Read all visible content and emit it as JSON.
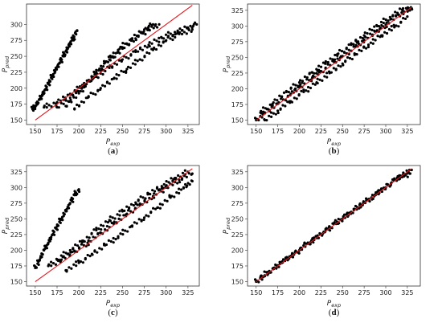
{
  "chart_data": [
    {
      "type": "scatter",
      "caption": {
        "open": "(",
        "letter": "a",
        "close": ")"
      },
      "xlabel": {
        "base": "P",
        "sub": "exp"
      },
      "ylabel": {
        "base": "P",
        "sub": "pred"
      },
      "xticks": [
        "150",
        "175",
        "200",
        "225",
        "250",
        "275",
        "300",
        "325"
      ],
      "yticks": [
        "150",
        "175",
        "200",
        "225",
        "250",
        "275",
        "300"
      ],
      "xlim": [
        140,
        338
      ],
      "ylim": [
        143,
        332
      ],
      "reference_line": {
        "from": [
          150,
          150
        ],
        "to": [
          330,
          330
        ],
        "color": "#e0151b"
      },
      "marker_color": "#000000",
      "series": [
        {
          "points": [
            [
              147,
              167
            ],
            [
              150,
              172
            ],
            [
              155,
              182
            ],
            [
              158,
              190
            ],
            [
              162,
              198
            ],
            [
              166,
              210
            ],
            [
              170,
              220
            ],
            [
              174,
              230
            ],
            [
              178,
              240
            ],
            [
              182,
              250
            ],
            [
              186,
              260
            ],
            [
              190,
              270
            ],
            [
              194,
              280
            ],
            [
              198,
              290
            ]
          ]
        },
        {
          "points": [
            [
              160,
              170
            ],
            [
              175,
              178
            ],
            [
              190,
              190
            ],
            [
              205,
              205
            ],
            [
              220,
              218
            ],
            [
              235,
              232
            ],
            [
              250,
              245
            ],
            [
              265,
              257
            ],
            [
              280,
              268
            ],
            [
              295,
              279
            ],
            [
              310,
              288
            ],
            [
              325,
              295
            ],
            [
              335,
              300
            ]
          ]
        },
        {
          "points": [
            [
              175,
              170
            ],
            [
              190,
              185
            ],
            [
              205,
              205
            ],
            [
              220,
              225
            ],
            [
              235,
              245
            ],
            [
              250,
              262
            ],
            [
              265,
              278
            ],
            [
              280,
              292
            ],
            [
              292,
              300
            ]
          ]
        },
        {
          "points": [
            [
              185,
              172
            ],
            [
              200,
              192
            ],
            [
              215,
              215
            ],
            [
              230,
              240
            ],
            [
              245,
              260
            ],
            [
              260,
              277
            ],
            [
              275,
              292
            ],
            [
              285,
              300
            ]
          ]
        },
        {
          "points": [
            [
              195,
              168
            ],
            [
              210,
              185
            ],
            [
              225,
              200
            ],
            [
              240,
              215
            ],
            [
              255,
              230
            ],
            [
              270,
              245
            ],
            [
              285,
              260
            ],
            [
              300,
              275
            ],
            [
              315,
              285
            ],
            [
              330,
              292
            ]
          ]
        }
      ]
    },
    {
      "type": "scatter",
      "caption": {
        "open": "(",
        "letter": "b",
        "close": ")"
      },
      "xlabel": {
        "base": "P",
        "sub": "exp"
      },
      "ylabel": {
        "base": "P",
        "sub": "pred"
      },
      "xticks": [
        "150",
        "175",
        "200",
        "225",
        "250",
        "275",
        "300",
        "325"
      ],
      "yticks": [
        "150",
        "175",
        "200",
        "225",
        "250",
        "275",
        "300",
        "325"
      ],
      "xlim": [
        140,
        340
      ],
      "ylim": [
        143,
        335
      ],
      "reference_line": {
        "from": [
          150,
          150
        ],
        "to": [
          330,
          330
        ],
        "color": "#e0151b"
      },
      "marker_color": "#000000",
      "series": [
        {
          "points": [
            [
              150,
              150
            ],
            [
              160,
              162
            ],
            [
              175,
              176
            ],
            [
              190,
              192
            ],
            [
              200,
              203
            ],
            [
              215,
              218
            ],
            [
              225,
              228
            ],
            [
              240,
              243
            ],
            [
              250,
              252
            ],
            [
              265,
              267
            ],
            [
              275,
              278
            ],
            [
              290,
              292
            ],
            [
              300,
              302
            ],
            [
              315,
              318
            ],
            [
              325,
              326
            ],
            [
              330,
              328
            ]
          ]
        },
        {
          "points": [
            [
              155,
              162
            ],
            [
              170,
              178
            ],
            [
              185,
              195
            ],
            [
              200,
              210
            ],
            [
              215,
              226
            ],
            [
              230,
              240
            ],
            [
              245,
              256
            ],
            [
              260,
              270
            ],
            [
              275,
              285
            ],
            [
              290,
              300
            ],
            [
              305,
              314
            ],
            [
              320,
              328
            ]
          ]
        },
        {
          "points": [
            [
              160,
              150
            ],
            [
              175,
              165
            ],
            [
              190,
              180
            ],
            [
              205,
              195
            ],
            [
              220,
              210
            ],
            [
              235,
              225
            ],
            [
              250,
              240
            ],
            [
              265,
              255
            ],
            [
              280,
              270
            ],
            [
              295,
              285
            ],
            [
              310,
              298
            ],
            [
              325,
              315
            ]
          ]
        }
      ]
    },
    {
      "type": "scatter",
      "caption": {
        "open": "(",
        "letter": "c",
        "close": ")"
      },
      "xlabel": {
        "base": "P",
        "sub": "exp"
      },
      "ylabel": {
        "base": "P",
        "sub": "pred"
      },
      "xticks": [
        "150",
        "175",
        "200",
        "225",
        "250",
        "275",
        "300",
        "325"
      ],
      "yticks": [
        "150",
        "175",
        "200",
        "225",
        "250",
        "275",
        "300",
        "325"
      ],
      "xlim": [
        140,
        338
      ],
      "ylim": [
        143,
        335
      ],
      "reference_line": {
        "from": [
          150,
          150
        ],
        "to": [
          330,
          330
        ],
        "color": "#e0151b"
      },
      "marker_color": "#000000",
      "series": [
        {
          "points": [
            [
              150,
              172
            ],
            [
              155,
              185
            ],
            [
              160,
              200
            ],
            [
              165,
              212
            ],
            [
              170,
              225
            ],
            [
              175,
              238
            ],
            [
              180,
              250
            ],
            [
              185,
              262
            ],
            [
              190,
              275
            ],
            [
              195,
              288
            ],
            [
              200,
              297
            ]
          ]
        },
        {
          "points": [
            [
              165,
              175
            ],
            [
              180,
              185
            ],
            [
              195,
              198
            ],
            [
              210,
              212
            ],
            [
              225,
              228
            ],
            [
              240,
              242
            ],
            [
              255,
              258
            ],
            [
              270,
              272
            ],
            [
              285,
              286
            ],
            [
              300,
              300
            ],
            [
              315,
              312
            ],
            [
              330,
              322
            ]
          ]
        },
        {
          "points": [
            [
              175,
              185
            ],
            [
              190,
              200
            ],
            [
              205,
              215
            ],
            [
              220,
              232
            ],
            [
              235,
              248
            ],
            [
              250,
              262
            ],
            [
              265,
              276
            ],
            [
              280,
              290
            ],
            [
              295,
              302
            ],
            [
              310,
              315
            ],
            [
              325,
              325
            ]
          ]
        },
        {
          "points": [
            [
              185,
              168
            ],
            [
              200,
              180
            ],
            [
              215,
              194
            ],
            [
              230,
              208
            ],
            [
              245,
              222
            ],
            [
              260,
              238
            ],
            [
              275,
              252
            ],
            [
              290,
              268
            ],
            [
              305,
              284
            ],
            [
              320,
              300
            ],
            [
              330,
              310
            ]
          ]
        }
      ]
    },
    {
      "type": "scatter",
      "caption": {
        "open": "(",
        "letter": "d",
        "close": ")"
      },
      "xlabel": {
        "base": "P",
        "sub": "exp"
      },
      "ylabel": {
        "base": "P",
        "sub": "pred"
      },
      "xticks": [
        "150",
        "175",
        "200",
        "225",
        "250",
        "275",
        "300",
        "325"
      ],
      "yticks": [
        "150",
        "175",
        "200",
        "225",
        "250",
        "275",
        "300",
        "325"
      ],
      "xlim": [
        140,
        340
      ],
      "ylim": [
        143,
        335
      ],
      "reference_line": {
        "from": [
          150,
          150
        ],
        "to": [
          330,
          330
        ],
        "color": "#e0151b"
      },
      "marker_color": "#000000",
      "series": [
        {
          "points": [
            [
              150,
              150
            ],
            [
              160,
              160
            ],
            [
              170,
              170
            ],
            [
              180,
              182
            ],
            [
              190,
              190
            ],
            [
              200,
              200
            ],
            [
              210,
              212
            ],
            [
              220,
              220
            ],
            [
              230,
              230
            ],
            [
              240,
              242
            ],
            [
              250,
              250
            ],
            [
              260,
              260
            ],
            [
              270,
              272
            ],
            [
              280,
              280
            ],
            [
              290,
              290
            ],
            [
              300,
              300
            ],
            [
              310,
              312
            ],
            [
              320,
              320
            ],
            [
              330,
              328
            ]
          ]
        },
        {
          "points": [
            [
              155,
              157
            ],
            [
              175,
              176
            ],
            [
              195,
              196
            ],
            [
              215,
              216
            ],
            [
              235,
              236
            ],
            [
              255,
              256
            ],
            [
              275,
              276
            ],
            [
              295,
              296
            ],
            [
              315,
              316
            ],
            [
              328,
              322
            ]
          ]
        }
      ]
    }
  ]
}
